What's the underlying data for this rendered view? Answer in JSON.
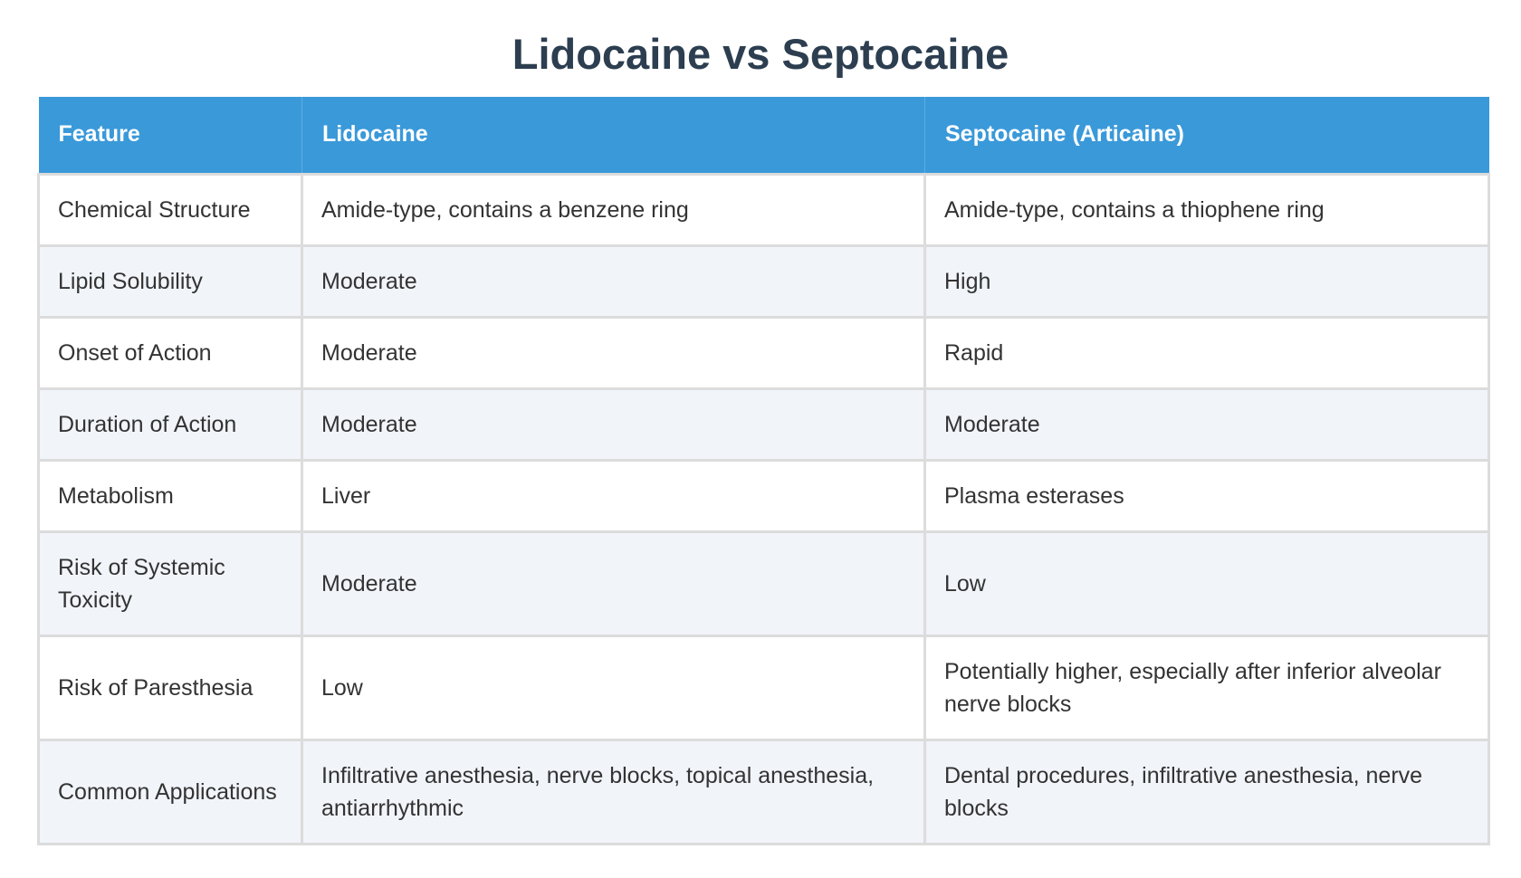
{
  "title": "Lidocaine vs Septocaine",
  "table": {
    "headers": [
      "Feature",
      "Lidocaine",
      "Septocaine (Articaine)"
    ],
    "rows": [
      [
        "Chemical Structure",
        "Amide-type, contains a benzene ring",
        "Amide-type, contains a thiophene ring"
      ],
      [
        "Lipid Solubility",
        "Moderate",
        "High"
      ],
      [
        "Onset of Action",
        "Moderate",
        "Rapid"
      ],
      [
        "Duration of Action",
        "Moderate",
        "Moderate"
      ],
      [
        "Metabolism",
        "Liver",
        "Plasma esterases"
      ],
      [
        "Risk of Systemic Toxicity",
        "Moderate",
        "Low"
      ],
      [
        "Risk of Paresthesia",
        "Low",
        "Potentially higher, especially after inferior alveolar nerve blocks"
      ],
      [
        "Common Applications",
        "Infiltrative anesthesia, nerve blocks, topical anesthesia, antiarrhythmic",
        "Dental procedures, infiltrative anesthesia, nerve blocks"
      ]
    ]
  },
  "colors": {
    "header_bg": "#3a99d9",
    "title": "#2c3e50",
    "row_alt": "#f1f4f9",
    "border": "#dcdcdc"
  }
}
